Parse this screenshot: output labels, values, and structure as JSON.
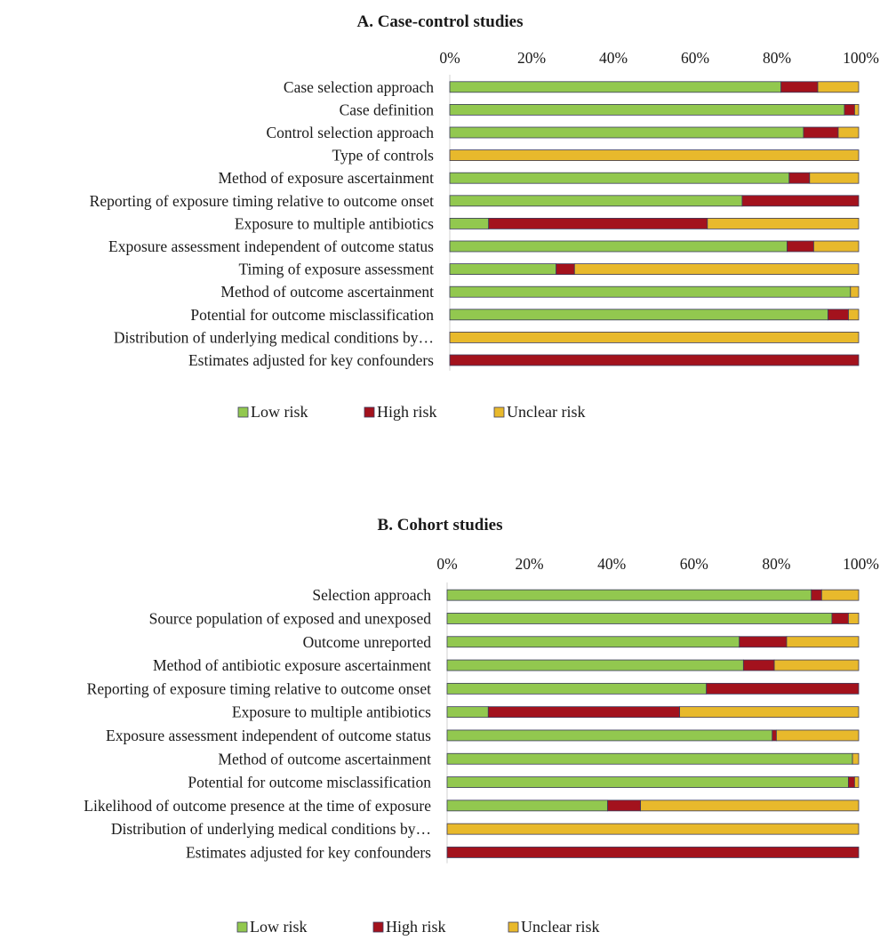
{
  "colors": {
    "low": "#92c84f",
    "high": "#a3121d",
    "unclear": "#e8b92c",
    "bar_outline": "#3b3b5c",
    "axis": "#d0d0d0"
  },
  "chart_data": [
    {
      "type": "bar",
      "orientation": "horizontal",
      "stacked": true,
      "title": "A. Case-control studies",
      "xlabel": "",
      "ylabel": "",
      "xlim": [
        0,
        100
      ],
      "x_ticks": [
        "0%",
        "20%",
        "40%",
        "60%",
        "80%",
        "100%"
      ],
      "tick_position": "top",
      "legend_position": "bottom",
      "grid": false,
      "categories": [
        "Case selection approach",
        "Case definition",
        "Control selection approach",
        "Type of controls",
        "Method of exposure ascertainment",
        "Reporting of exposure timing relative to outcome onset",
        "Exposure to multiple antibiotics",
        "Exposure assessment independent of outcome status",
        "Timing of exposure assessment",
        "Method of outcome ascertainment",
        "Potential for outcome misclassification",
        "Distribution of underlying medical conditions by…",
        "Estimates adjusted for key confounders"
      ],
      "series": [
        {
          "name": "Low risk",
          "color_key": "low",
          "values": [
            81,
            96.5,
            86.5,
            0,
            83,
            71.5,
            9.5,
            82.5,
            26,
            98,
            92.5,
            0,
            0
          ]
        },
        {
          "name": "High risk",
          "color_key": "high",
          "values": [
            9,
            2.5,
            8.5,
            0,
            5,
            28.5,
            53.5,
            6.5,
            4.5,
            0,
            5,
            0,
            100
          ]
        },
        {
          "name": "Unclear risk",
          "color_key": "unclear",
          "values": [
            10,
            1,
            5,
            100,
            12,
            0,
            37,
            11,
            69.5,
            2,
            2.5,
            100,
            0
          ]
        }
      ]
    },
    {
      "type": "bar",
      "orientation": "horizontal",
      "stacked": true,
      "title": "B. Cohort studies",
      "xlabel": "",
      "ylabel": "",
      "xlim": [
        0,
        100
      ],
      "x_ticks": [
        "0%",
        "20%",
        "40%",
        "60%",
        "80%",
        "100%"
      ],
      "tick_position": "top",
      "legend_position": "bottom",
      "grid": false,
      "categories": [
        "Selection approach",
        "Source population of exposed and unexposed",
        "Outcome unreported",
        "Method of antibiotic exposure ascertainment",
        "Reporting of exposure timing relative to outcome onset",
        "Exposure to multiple antibiotics",
        "Exposure assessment independent of outcome status",
        "Method of outcome ascertainment",
        "Potential for outcome misclassification",
        "Likelihood of outcome presence at the time of exposure",
        "Distribution of underlying medical conditions by…",
        "Estimates adjusted for key confounders"
      ],
      "series": [
        {
          "name": "Low risk",
          "color_key": "low",
          "values": [
            88.5,
            93.5,
            71,
            72,
            63,
            10,
            79,
            98.5,
            97.5,
            39,
            0,
            0
          ]
        },
        {
          "name": "High risk",
          "color_key": "high",
          "values": [
            2.5,
            4,
            11.5,
            7.5,
            37,
            46.5,
            1,
            0,
            1.5,
            8,
            0,
            100
          ]
        },
        {
          "name": "Unclear risk",
          "color_key": "unclear",
          "values": [
            9,
            2.5,
            17.5,
            20.5,
            0,
            43.5,
            20,
            1.5,
            1,
            53,
            100,
            0
          ]
        }
      ]
    }
  ]
}
